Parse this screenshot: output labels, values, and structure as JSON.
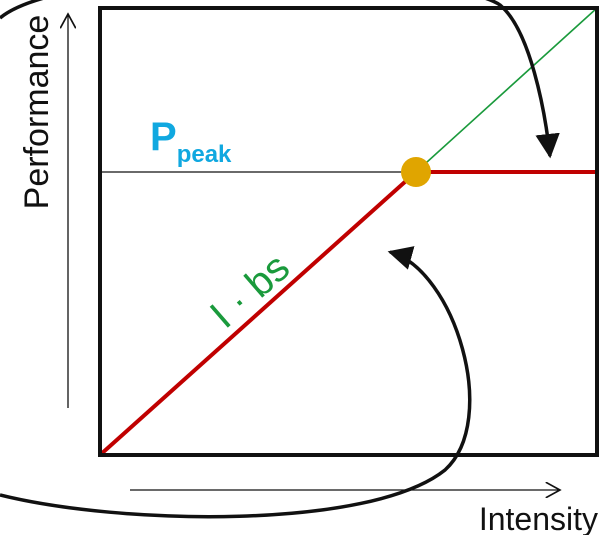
{
  "axes": {
    "x_label": "Intensity",
    "y_label": "Performance"
  },
  "labels": {
    "peak_main": "P",
    "peak_sub": "peak",
    "bandwidth": "I · bs"
  },
  "colors": {
    "frame": "#111111",
    "roofline": "#c00000",
    "extension": "#1a9a3c",
    "peak_text": "#10a8e0",
    "bandwidth_text": "#1a9a3c",
    "ridge_point": "#e0a500",
    "arrow": "#111111"
  }
}
